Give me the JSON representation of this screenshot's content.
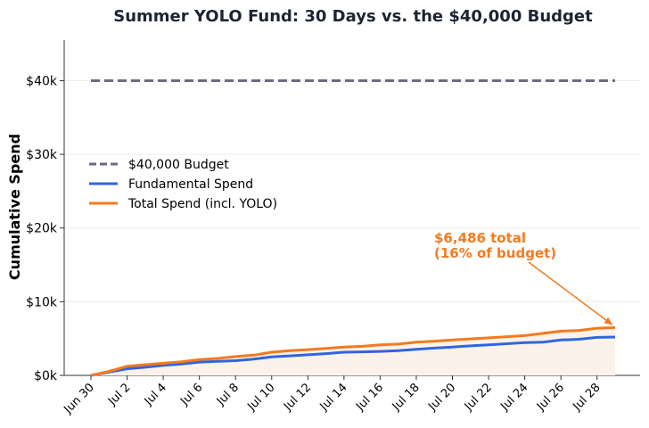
{
  "chart_data": {
    "type": "line",
    "title": "Summer YOLO Fund: 30 Days vs. the $40,000 Budget",
    "xlabel": "",
    "ylabel": "Cumulative Spend",
    "x": [
      "Jun 30",
      "Jul 1",
      "Jul 2",
      "Jul 3",
      "Jul 4",
      "Jul 5",
      "Jul 6",
      "Jul 7",
      "Jul 8",
      "Jul 9",
      "Jul 10",
      "Jul 11",
      "Jul 12",
      "Jul 13",
      "Jul 14",
      "Jul 15",
      "Jul 16",
      "Jul 17",
      "Jul 18",
      "Jul 19",
      "Jul 20",
      "Jul 21",
      "Jul 22",
      "Jul 23",
      "Jul 24",
      "Jul 25",
      "Jul 26",
      "Jul 27",
      "Jul 28",
      "Jul 29"
    ],
    "x_tick_labels": [
      "Jun 30",
      "Jul 2",
      "Jul 4",
      "Jul 6",
      "Jul 8",
      "Jul 10",
      "Jul 12",
      "Jul 14",
      "Jul 16",
      "Jul 18",
      "Jul 20",
      "Jul 22",
      "Jul 24",
      "Jul 26",
      "Jul 28"
    ],
    "y_ticks": [
      0,
      10000,
      20000,
      30000,
      40000
    ],
    "y_tick_labels": [
      "$0k",
      "$10k",
      "$20k",
      "$30k",
      "$40k"
    ],
    "ylim": [
      0,
      45500
    ],
    "grid": "horizontal",
    "legend_position": "center-left",
    "series": [
      {
        "name": "$40,000 Budget",
        "style": "dashed",
        "color": "#6b6b80",
        "values": [
          40000,
          40000,
          40000,
          40000,
          40000,
          40000,
          40000,
          40000,
          40000,
          40000,
          40000,
          40000,
          40000,
          40000,
          40000,
          40000,
          40000,
          40000,
          40000,
          40000,
          40000,
          40000,
          40000,
          40000,
          40000,
          40000,
          40000,
          40000,
          40000,
          40000
        ]
      },
      {
        "name": "Fundamental Spend",
        "style": "solid",
        "color": "#2f66e0",
        "values": [
          0,
          450,
          900,
          1100,
          1350,
          1550,
          1800,
          1900,
          2000,
          2200,
          2500,
          2650,
          2800,
          2950,
          3150,
          3200,
          3250,
          3350,
          3550,
          3700,
          3850,
          4000,
          4150,
          4300,
          4450,
          4500,
          4800,
          4900,
          5150,
          5200
        ]
      },
      {
        "name": "Total Spend (incl. YOLO)",
        "style": "solid",
        "color": "#f47a1f",
        "fill": "#fdf2ea",
        "values": [
          0,
          550,
          1250,
          1450,
          1650,
          1850,
          2150,
          2300,
          2550,
          2750,
          3150,
          3350,
          3500,
          3650,
          3850,
          3950,
          4150,
          4250,
          4500,
          4650,
          4800,
          4950,
          5100,
          5250,
          5400,
          5700,
          6000,
          6100,
          6400,
          6486
        ]
      }
    ],
    "annotation": {
      "line1": "$6,486 total",
      "line2": "(16% of budget)",
      "color": "#f47a1f",
      "x": "Jul 29",
      "y": 6486
    }
  }
}
